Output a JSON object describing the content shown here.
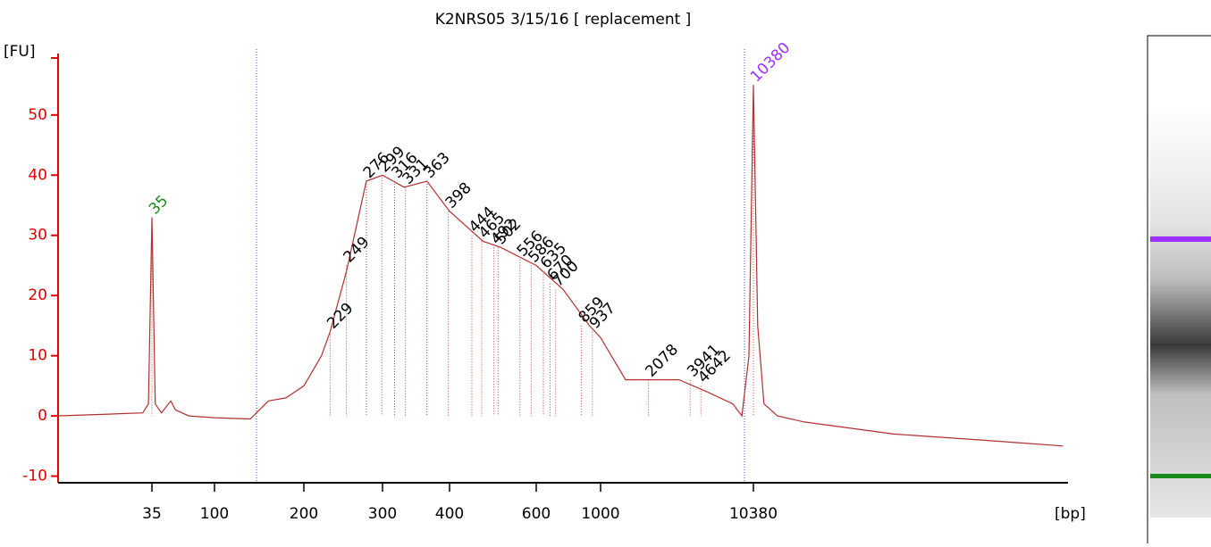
{
  "chart_data": {
    "type": "electropherogram",
    "title": "K2NRS05 3/15/16  [ replacement ]",
    "ylabel": "[FU]",
    "xlabel": "[bp]",
    "ylim": [
      -11.1,
      60.2
    ],
    "yticks": [
      -10,
      0,
      10,
      20,
      30,
      40,
      50
    ],
    "xticks": [
      35,
      100,
      200,
      300,
      400,
      600,
      1000,
      10380
    ],
    "axis_color": "#e00000",
    "trace_color": "#b03030",
    "trace": {
      "bp": [
        7,
        17,
        30,
        33,
        35,
        37,
        41,
        48,
        52,
        65,
        100,
        132,
        152,
        174,
        200,
        219,
        229,
        249,
        276,
        300,
        314,
        329,
        363,
        400,
        468,
        508,
        600,
        743,
        915,
        1000,
        1467,
        2213,
        3334,
        5093,
        7570,
        8700,
        9700,
        10380,
        11090,
        12200,
        15000,
        22600,
        89000,
        340000,
        1190000
      ],
      "fu": [
        0,
        0.3,
        0.5,
        2,
        33,
        2,
        0.5,
        2.5,
        1,
        0,
        -0.3,
        -0.5,
        2.5,
        3,
        5,
        10,
        14,
        24,
        39,
        40,
        39,
        38,
        39,
        34,
        29,
        28,
        25,
        21,
        15,
        13,
        6,
        6,
        6,
        4,
        2,
        0,
        10,
        55,
        15,
        2,
        0,
        -1,
        -3,
        -4,
        -5
      ]
    },
    "peaks": {
      "values": [
        35,
        229,
        249,
        276,
        299,
        316,
        331,
        363,
        398,
        444,
        465,
        492,
        502,
        556,
        586,
        635,
        670,
        700,
        859,
        937,
        2078,
        3941,
        4642,
        10380
      ],
      "heights": [
        33,
        14,
        25,
        39,
        40,
        39,
        38,
        39,
        34,
        30,
        29,
        28,
        28,
        26,
        25,
        24,
        22,
        21,
        15,
        14,
        6,
        6,
        5,
        55
      ]
    },
    "label_color": "#000000",
    "lower_marker_color": "#1a8a1a",
    "upper_marker_color": "#9b30ff"
  }
}
